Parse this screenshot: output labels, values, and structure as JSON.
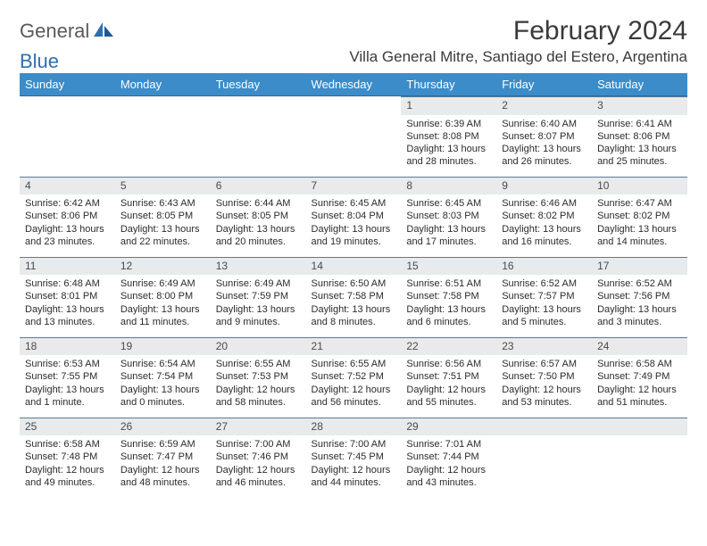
{
  "logo": {
    "part1": "General",
    "part2": "Blue"
  },
  "title": "February 2024",
  "location": "Villa General Mitre, Santiago del Estero, Argentina",
  "colors": {
    "header_bg": "#3b8cc9",
    "header_text": "#ffffff",
    "daynum_bg": "#e8eaec",
    "border": "#5a7a95",
    "text": "#2b2b2b",
    "logo_gray": "#5a5a5a",
    "logo_blue": "#2f6fb0"
  },
  "weekdays": [
    "Sunday",
    "Monday",
    "Tuesday",
    "Wednesday",
    "Thursday",
    "Friday",
    "Saturday"
  ],
  "weeks": [
    [
      null,
      null,
      null,
      null,
      {
        "n": "1",
        "sr": "Sunrise: 6:39 AM",
        "ss": "Sunset: 8:08 PM",
        "d1": "Daylight: 13 hours",
        "d2": "and 28 minutes."
      },
      {
        "n": "2",
        "sr": "Sunrise: 6:40 AM",
        "ss": "Sunset: 8:07 PM",
        "d1": "Daylight: 13 hours",
        "d2": "and 26 minutes."
      },
      {
        "n": "3",
        "sr": "Sunrise: 6:41 AM",
        "ss": "Sunset: 8:06 PM",
        "d1": "Daylight: 13 hours",
        "d2": "and 25 minutes."
      }
    ],
    [
      {
        "n": "4",
        "sr": "Sunrise: 6:42 AM",
        "ss": "Sunset: 8:06 PM",
        "d1": "Daylight: 13 hours",
        "d2": "and 23 minutes."
      },
      {
        "n": "5",
        "sr": "Sunrise: 6:43 AM",
        "ss": "Sunset: 8:05 PM",
        "d1": "Daylight: 13 hours",
        "d2": "and 22 minutes."
      },
      {
        "n": "6",
        "sr": "Sunrise: 6:44 AM",
        "ss": "Sunset: 8:05 PM",
        "d1": "Daylight: 13 hours",
        "d2": "and 20 minutes."
      },
      {
        "n": "7",
        "sr": "Sunrise: 6:45 AM",
        "ss": "Sunset: 8:04 PM",
        "d1": "Daylight: 13 hours",
        "d2": "and 19 minutes."
      },
      {
        "n": "8",
        "sr": "Sunrise: 6:45 AM",
        "ss": "Sunset: 8:03 PM",
        "d1": "Daylight: 13 hours",
        "d2": "and 17 minutes."
      },
      {
        "n": "9",
        "sr": "Sunrise: 6:46 AM",
        "ss": "Sunset: 8:02 PM",
        "d1": "Daylight: 13 hours",
        "d2": "and 16 minutes."
      },
      {
        "n": "10",
        "sr": "Sunrise: 6:47 AM",
        "ss": "Sunset: 8:02 PM",
        "d1": "Daylight: 13 hours",
        "d2": "and 14 minutes."
      }
    ],
    [
      {
        "n": "11",
        "sr": "Sunrise: 6:48 AM",
        "ss": "Sunset: 8:01 PM",
        "d1": "Daylight: 13 hours",
        "d2": "and 13 minutes."
      },
      {
        "n": "12",
        "sr": "Sunrise: 6:49 AM",
        "ss": "Sunset: 8:00 PM",
        "d1": "Daylight: 13 hours",
        "d2": "and 11 minutes."
      },
      {
        "n": "13",
        "sr": "Sunrise: 6:49 AM",
        "ss": "Sunset: 7:59 PM",
        "d1": "Daylight: 13 hours",
        "d2": "and 9 minutes."
      },
      {
        "n": "14",
        "sr": "Sunrise: 6:50 AM",
        "ss": "Sunset: 7:58 PM",
        "d1": "Daylight: 13 hours",
        "d2": "and 8 minutes."
      },
      {
        "n": "15",
        "sr": "Sunrise: 6:51 AM",
        "ss": "Sunset: 7:58 PM",
        "d1": "Daylight: 13 hours",
        "d2": "and 6 minutes."
      },
      {
        "n": "16",
        "sr": "Sunrise: 6:52 AM",
        "ss": "Sunset: 7:57 PM",
        "d1": "Daylight: 13 hours",
        "d2": "and 5 minutes."
      },
      {
        "n": "17",
        "sr": "Sunrise: 6:52 AM",
        "ss": "Sunset: 7:56 PM",
        "d1": "Daylight: 13 hours",
        "d2": "and 3 minutes."
      }
    ],
    [
      {
        "n": "18",
        "sr": "Sunrise: 6:53 AM",
        "ss": "Sunset: 7:55 PM",
        "d1": "Daylight: 13 hours",
        "d2": "and 1 minute."
      },
      {
        "n": "19",
        "sr": "Sunrise: 6:54 AM",
        "ss": "Sunset: 7:54 PM",
        "d1": "Daylight: 13 hours",
        "d2": "and 0 minutes."
      },
      {
        "n": "20",
        "sr": "Sunrise: 6:55 AM",
        "ss": "Sunset: 7:53 PM",
        "d1": "Daylight: 12 hours",
        "d2": "and 58 minutes."
      },
      {
        "n": "21",
        "sr": "Sunrise: 6:55 AM",
        "ss": "Sunset: 7:52 PM",
        "d1": "Daylight: 12 hours",
        "d2": "and 56 minutes."
      },
      {
        "n": "22",
        "sr": "Sunrise: 6:56 AM",
        "ss": "Sunset: 7:51 PM",
        "d1": "Daylight: 12 hours",
        "d2": "and 55 minutes."
      },
      {
        "n": "23",
        "sr": "Sunrise: 6:57 AM",
        "ss": "Sunset: 7:50 PM",
        "d1": "Daylight: 12 hours",
        "d2": "and 53 minutes."
      },
      {
        "n": "24",
        "sr": "Sunrise: 6:58 AM",
        "ss": "Sunset: 7:49 PM",
        "d1": "Daylight: 12 hours",
        "d2": "and 51 minutes."
      }
    ],
    [
      {
        "n": "25",
        "sr": "Sunrise: 6:58 AM",
        "ss": "Sunset: 7:48 PM",
        "d1": "Daylight: 12 hours",
        "d2": "and 49 minutes."
      },
      {
        "n": "26",
        "sr": "Sunrise: 6:59 AM",
        "ss": "Sunset: 7:47 PM",
        "d1": "Daylight: 12 hours",
        "d2": "and 48 minutes."
      },
      {
        "n": "27",
        "sr": "Sunrise: 7:00 AM",
        "ss": "Sunset: 7:46 PM",
        "d1": "Daylight: 12 hours",
        "d2": "and 46 minutes."
      },
      {
        "n": "28",
        "sr": "Sunrise: 7:00 AM",
        "ss": "Sunset: 7:45 PM",
        "d1": "Daylight: 12 hours",
        "d2": "and 44 minutes."
      },
      {
        "n": "29",
        "sr": "Sunrise: 7:01 AM",
        "ss": "Sunset: 7:44 PM",
        "d1": "Daylight: 12 hours",
        "d2": "and 43 minutes."
      },
      null,
      null
    ]
  ]
}
